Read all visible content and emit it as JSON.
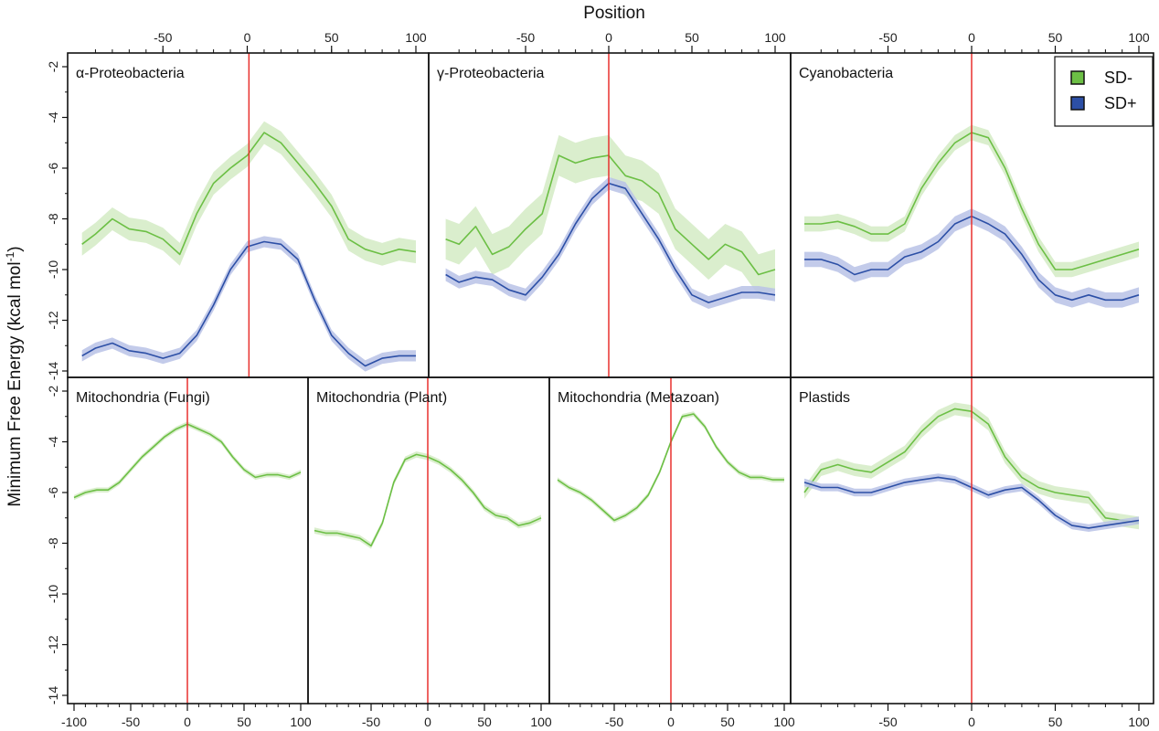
{
  "figure": {
    "xlabel_top": "Position",
    "ylabel": "Minimum Free Energy (kcal mol",
    "ylabel_sup": "-1",
    "ylabel_close": ")"
  },
  "legend": [
    {
      "label": "SD-",
      "color": "#6cbf45"
    },
    {
      "label": "SD+",
      "color": "#2c4fa6"
    }
  ],
  "colors": {
    "sd_minus_line": "#6cbf45",
    "sd_minus_band": "#d3ebc4",
    "sd_plus_line": "#2c4fa6",
    "sd_plus_band": "#b8c2e6",
    "marker_line": "#e8312e"
  },
  "chart_data": [
    {
      "type": "line",
      "title": "α-Proteobacteria",
      "xlim": [
        -100,
        100
      ],
      "ylim": [
        -14.3,
        -1.7
      ],
      "x_ticks_top": [
        "-50",
        "0",
        "50",
        "100"
      ],
      "y_ticks": [
        "-2",
        "-4",
        "-6",
        "-8",
        "-10",
        "-12",
        "-14"
      ],
      "marker_x": 1,
      "series": [
        {
          "name": "SD-",
          "x": [
            -98,
            -90,
            -80,
            -70,
            -60,
            -50,
            -40,
            -30,
            -20,
            -10,
            0,
            10,
            20,
            30,
            40,
            50,
            60,
            70,
            80,
            90,
            100
          ],
          "values": [
            -9.0,
            -8.6,
            -8.0,
            -8.4,
            -8.5,
            -8.8,
            -9.4,
            -7.8,
            -6.6,
            -6.0,
            -5.5,
            -4.6,
            -5.0,
            -5.8,
            -6.6,
            -7.5,
            -8.8,
            -9.2,
            -9.4,
            -9.2,
            -9.3
          ],
          "band": 0.45
        },
        {
          "name": "SD+",
          "x": [
            -98,
            -90,
            -80,
            -70,
            -60,
            -50,
            -40,
            -30,
            -20,
            -10,
            0,
            10,
            20,
            30,
            40,
            50,
            60,
            70,
            80,
            90,
            100
          ],
          "values": [
            -13.4,
            -13.1,
            -12.9,
            -13.2,
            -13.3,
            -13.5,
            -13.3,
            -12.6,
            -11.4,
            -10.0,
            -9.1,
            -8.9,
            -9.0,
            -9.6,
            -11.2,
            -12.6,
            -13.3,
            -13.8,
            -13.5,
            -13.4,
            -13.4
          ],
          "band": 0.22
        }
      ]
    },
    {
      "type": "line",
      "title": "γ-Proteobacteria",
      "xlim": [
        -100,
        100
      ],
      "ylim": [
        -14.3,
        -1.7
      ],
      "x_ticks_top": [
        "-50",
        "0",
        "50",
        "100"
      ],
      "marker_x": 0,
      "series": [
        {
          "name": "SD-",
          "x": [
            -98,
            -90,
            -80,
            -70,
            -60,
            -50,
            -40,
            -30,
            -20,
            -10,
            0,
            10,
            20,
            30,
            40,
            50,
            60,
            70,
            80,
            90,
            100
          ],
          "values": [
            -8.8,
            -9.0,
            -8.3,
            -9.4,
            -9.1,
            -8.4,
            -7.8,
            -5.5,
            -5.8,
            -5.6,
            -5.5,
            -6.3,
            -6.5,
            -7.0,
            -8.4,
            -9.0,
            -9.6,
            -9.0,
            -9.3,
            -10.2,
            -10.0
          ],
          "band": 0.8
        },
        {
          "name": "SD+",
          "x": [
            -98,
            -90,
            -80,
            -70,
            -60,
            -50,
            -40,
            -30,
            -20,
            -10,
            0,
            10,
            20,
            30,
            40,
            50,
            60,
            70,
            80,
            90,
            100
          ],
          "values": [
            -10.2,
            -10.5,
            -10.3,
            -10.4,
            -10.8,
            -11.0,
            -10.3,
            -9.4,
            -8.2,
            -7.2,
            -6.6,
            -6.8,
            -7.8,
            -8.8,
            -10.0,
            -11.0,
            -11.3,
            -11.1,
            -10.9,
            -10.9,
            -11.0
          ],
          "band": 0.25
        }
      ]
    },
    {
      "type": "line",
      "title": "Cyanobacteria",
      "xlim": [
        -100,
        100
      ],
      "ylim": [
        -14.3,
        -1.7
      ],
      "x_ticks_top": [
        "-50",
        "0",
        "50",
        "100"
      ],
      "marker_x": 0,
      "series": [
        {
          "name": "SD-",
          "x": [
            -100,
            -90,
            -80,
            -70,
            -60,
            -50,
            -40,
            -30,
            -20,
            -10,
            0,
            10,
            20,
            30,
            40,
            50,
            60,
            70,
            80,
            90,
            100
          ],
          "values": [
            -8.2,
            -8.2,
            -8.1,
            -8.3,
            -8.6,
            -8.6,
            -8.2,
            -6.8,
            -5.8,
            -5.0,
            -4.6,
            -4.8,
            -6.0,
            -7.6,
            -9.0,
            -10.0,
            -10.0,
            -9.8,
            -9.6,
            -9.4,
            -9.2
          ],
          "band": 0.3
        },
        {
          "name": "SD+",
          "x": [
            -100,
            -90,
            -80,
            -70,
            -60,
            -50,
            -40,
            -30,
            -20,
            -10,
            0,
            10,
            20,
            30,
            40,
            50,
            60,
            70,
            80,
            90,
            100
          ],
          "values": [
            -9.6,
            -9.6,
            -9.8,
            -10.2,
            -10.0,
            -10.0,
            -9.5,
            -9.3,
            -8.9,
            -8.2,
            -7.9,
            -8.2,
            -8.6,
            -9.4,
            -10.4,
            -11.0,
            -11.2,
            -11.0,
            -11.2,
            -11.2,
            -11.0
          ],
          "band": 0.3
        }
      ]
    },
    {
      "type": "line",
      "title": "Mitochondria (Fungi)",
      "xlim": [
        -100,
        100
      ],
      "ylim": [
        -14.3,
        -1.7
      ],
      "x_ticks_bottom": [
        "-100",
        "-50",
        "0",
        "50",
        "100"
      ],
      "y_ticks": [
        "-2",
        "-4",
        "-6",
        "-8",
        "-10",
        "-12",
        "-14"
      ],
      "marker_x": 0,
      "series": [
        {
          "name": "SD-",
          "x": [
            -100,
            -90,
            -80,
            -70,
            -60,
            -50,
            -40,
            -30,
            -20,
            -10,
            0,
            10,
            20,
            30,
            40,
            50,
            60,
            70,
            80,
            90,
            100
          ],
          "values": [
            -6.2,
            -6.0,
            -5.9,
            -5.9,
            -5.6,
            -5.1,
            -4.6,
            -4.2,
            -3.8,
            -3.5,
            -3.3,
            -3.5,
            -3.7,
            -4.0,
            -4.6,
            -5.1,
            -5.4,
            -5.3,
            -5.3,
            -5.4,
            -5.2
          ],
          "band": 0.1
        }
      ]
    },
    {
      "type": "line",
      "title": "Mitochondria (Plant)",
      "xlim": [
        -100,
        100
      ],
      "ylim": [
        -14.3,
        -1.7
      ],
      "x_ticks_bottom": [
        "-50",
        "0",
        "50",
        "100"
      ],
      "marker_x": 0,
      "series": [
        {
          "name": "SD-",
          "x": [
            -100,
            -90,
            -80,
            -70,
            -60,
            -50,
            -40,
            -30,
            -20,
            -10,
            0,
            10,
            20,
            30,
            40,
            50,
            60,
            70,
            80,
            90,
            100
          ],
          "values": [
            -7.5,
            -7.6,
            -7.6,
            -7.7,
            -7.8,
            -8.1,
            -7.2,
            -5.6,
            -4.7,
            -4.5,
            -4.6,
            -4.8,
            -5.1,
            -5.5,
            -6.0,
            -6.6,
            -6.9,
            -7.0,
            -7.3,
            -7.2,
            -7.0
          ],
          "band": 0.12
        }
      ]
    },
    {
      "type": "line",
      "title": "Mitochondria (Metazoan)",
      "xlim": [
        -100,
        100
      ],
      "ylim": [
        -14.3,
        -1.7
      ],
      "x_ticks_bottom": [
        "-50",
        "0",
        "50",
        "100"
      ],
      "marker_x": 0,
      "series": [
        {
          "name": "SD-",
          "x": [
            -100,
            -90,
            -80,
            -70,
            -60,
            -50,
            -40,
            -30,
            -20,
            -10,
            0,
            10,
            20,
            30,
            40,
            50,
            60,
            70,
            80,
            90,
            100
          ],
          "values": [
            -5.5,
            -5.8,
            -6.0,
            -6.3,
            -6.7,
            -7.1,
            -6.9,
            -6.6,
            -6.1,
            -5.2,
            -4.0,
            -3.0,
            -2.9,
            -3.4,
            -4.2,
            -4.8,
            -5.2,
            -5.4,
            -5.4,
            -5.5,
            -5.5
          ],
          "band": 0.1
        }
      ]
    },
    {
      "type": "line",
      "title": "Plastids",
      "xlim": [
        -100,
        100
      ],
      "ylim": [
        -14.3,
        -1.7
      ],
      "x_ticks_bottom": [
        "-50",
        "0",
        "50",
        "100"
      ],
      "marker_x": 0,
      "series": [
        {
          "name": "SD-",
          "x": [
            -100,
            -90,
            -80,
            -70,
            -60,
            -50,
            -40,
            -30,
            -20,
            -10,
            0,
            10,
            20,
            30,
            40,
            50,
            60,
            70,
            80,
            90,
            100
          ],
          "values": [
            -6.0,
            -5.1,
            -4.9,
            -5.1,
            -5.2,
            -4.8,
            -4.4,
            -3.6,
            -3.0,
            -2.7,
            -2.8,
            -3.3,
            -4.6,
            -5.4,
            -5.8,
            -6.0,
            -6.1,
            -6.2,
            -7.0,
            -7.1,
            -7.2
          ],
          "band": 0.25
        },
        {
          "name": "SD+",
          "x": [
            -100,
            -90,
            -80,
            -70,
            -60,
            -50,
            -40,
            -30,
            -20,
            -10,
            0,
            10,
            20,
            30,
            40,
            50,
            60,
            70,
            80,
            90,
            100
          ],
          "values": [
            -5.6,
            -5.8,
            -5.8,
            -6.0,
            -6.0,
            -5.8,
            -5.6,
            -5.5,
            -5.4,
            -5.5,
            -5.8,
            -6.1,
            -5.9,
            -5.8,
            -6.3,
            -6.9,
            -7.3,
            -7.4,
            -7.3,
            -7.2,
            -7.1
          ],
          "band": 0.15
        }
      ]
    }
  ]
}
